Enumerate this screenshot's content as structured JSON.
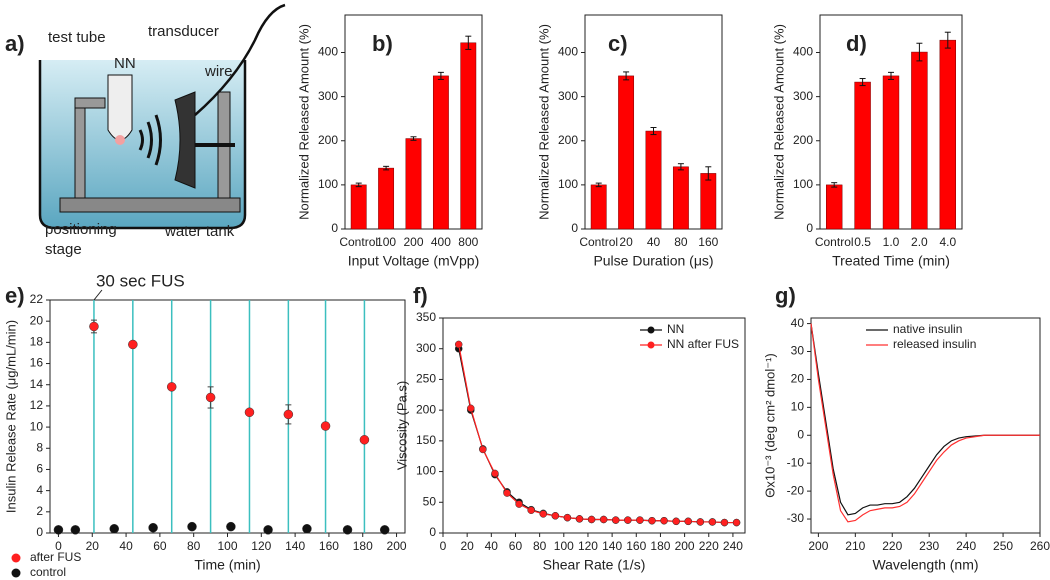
{
  "diagram": {
    "panel": "a)",
    "labels": [
      "test tube",
      "transducer",
      "NN",
      "wire",
      "positioning",
      "stage",
      "water tank"
    ]
  },
  "chart_data": [
    {
      "type": "bar",
      "panel": "b)",
      "xlabel": "Input Voltage (mVpp)",
      "ylabel": "Normalized Released Amount (%)",
      "categories": [
        "Control",
        "100",
        "200",
        "400",
        "800"
      ],
      "values": [
        100,
        138,
        205,
        347,
        422
      ],
      "errors": [
        4,
        4,
        4,
        8,
        15
      ],
      "color": "#ff0000",
      "ylim": [
        0,
        485
      ],
      "yticks": [
        0,
        100,
        200,
        300,
        400
      ]
    },
    {
      "type": "bar",
      "panel": "c)",
      "xlabel": "Pulse Duration (μs)",
      "ylabel": "Normalized Released Amount (%)",
      "categories": [
        "Control",
        "20",
        "40",
        "80",
        "160"
      ],
      "values": [
        100,
        347,
        222,
        141,
        126
      ],
      "errors": [
        4,
        9,
        8,
        7,
        15
      ],
      "color": "#ff0000",
      "ylim": [
        0,
        485
      ],
      "yticks": [
        0,
        100,
        200,
        300,
        400
      ]
    },
    {
      "type": "bar",
      "panel": "d)",
      "xlabel": "Treated Time (min)",
      "ylabel": "Normalized Released Amount (%)",
      "categories": [
        "Control",
        "0.5",
        "1.0",
        "2.0",
        "4.0"
      ],
      "values": [
        100,
        333,
        347,
        401,
        428
      ],
      "errors": [
        5,
        8,
        8,
        20,
        18
      ],
      "color": "#ff0000",
      "ylim": [
        0,
        485
      ],
      "yticks": [
        0,
        100,
        200,
        300,
        400
      ]
    },
    {
      "type": "scatter",
      "panel": "e)",
      "annotation": "30 sec FUS",
      "xlabel": "Time (min)",
      "ylabel": "Insulin Release Rate (μg/mL/min)",
      "xlim": [
        -5,
        205
      ],
      "xticks": [
        0,
        20,
        40,
        60,
        80,
        100,
        120,
        140,
        160,
        180,
        200
      ],
      "ylim": [
        0,
        22
      ],
      "yticks": [
        0,
        2,
        4,
        6,
        8,
        10,
        12,
        14,
        16,
        18,
        20,
        22
      ],
      "vlines": [
        21,
        44,
        67,
        90,
        113,
        136,
        158,
        181
      ],
      "vline_color": "#3bbfbf",
      "series": [
        {
          "name": "after FUS",
          "color": "#ff2020",
          "x": [
            21,
            44,
            67,
            90,
            113,
            136,
            158,
            181
          ],
          "values": [
            19.5,
            17.8,
            13.8,
            12.8,
            11.4,
            11.2,
            10.1,
            8.8
          ],
          "errors": [
            0.6,
            0.2,
            0.2,
            1.0,
            0.2,
            0.9,
            0.3,
            0.2
          ]
        },
        {
          "name": "control",
          "color": "#111111",
          "x": [
            0,
            10,
            33,
            56,
            79,
            102,
            124,
            147,
            171,
            193
          ],
          "values": [
            0.3,
            0.3,
            0.4,
            0.5,
            0.6,
            0.6,
            0.3,
            0.4,
            0.3,
            0.3
          ]
        }
      ]
    },
    {
      "type": "line",
      "panel": "f)",
      "markers": true,
      "xlabel": "Shear Rate (1/s)",
      "ylabel": "Viscosity (Pa.s)",
      "xlim": [
        0,
        250
      ],
      "xticks": [
        0,
        20,
        40,
        60,
        80,
        100,
        120,
        140,
        160,
        180,
        200,
        220,
        240
      ],
      "ylim": [
        0,
        350
      ],
      "yticks": [
        0,
        50,
        100,
        150,
        200,
        250,
        300,
        350
      ],
      "x": [
        13,
        23,
        33,
        43,
        53,
        63,
        73,
        83,
        93,
        103,
        113,
        123,
        133,
        143,
        153,
        163,
        173,
        183,
        193,
        203,
        213,
        223,
        233,
        243
      ],
      "series": [
        {
          "name": "NN",
          "color": "#111111",
          "values": [
            300,
            200,
            137,
            95,
            67,
            50,
            38,
            32,
            28,
            25,
            23,
            22,
            22,
            21,
            21,
            21,
            20,
            20,
            19,
            19,
            18,
            18,
            17,
            17
          ]
        },
        {
          "name": "NN after FUS",
          "color": "#ff2020",
          "values": [
            307,
            203,
            136,
            97,
            65,
            47,
            37,
            31,
            28,
            25,
            23,
            22,
            22,
            21,
            21,
            21,
            20,
            20,
            19,
            19,
            18,
            18,
            17,
            17
          ]
        }
      ]
    },
    {
      "type": "line",
      "panel": "g)",
      "markers": false,
      "xlabel": "Wavelength (nm)",
      "ylabel": "Θx10⁻³ (deg cm² dmol⁻¹)",
      "xlim": [
        198,
        260
      ],
      "xticks": [
        200,
        210,
        220,
        230,
        240,
        250,
        260
      ],
      "ylim": [
        -35,
        42
      ],
      "yticks": [
        -30,
        -20,
        -10,
        0,
        10,
        20,
        30,
        40
      ],
      "x": [
        198,
        200,
        202,
        204,
        206,
        208,
        210,
        212,
        214,
        216,
        218,
        220,
        222,
        224,
        226,
        228,
        230,
        232,
        234,
        236,
        238,
        240,
        245,
        250,
        255,
        260
      ],
      "series": [
        {
          "name": "native insulin",
          "color": "#111111",
          "values": [
            40,
            22,
            5,
            -12,
            -24,
            -28.5,
            -28,
            -26,
            -25,
            -25,
            -24.5,
            -24.5,
            -24,
            -22,
            -19,
            -15,
            -11,
            -7,
            -4,
            -2,
            -1,
            -0.5,
            0,
            0,
            0,
            0
          ]
        },
        {
          "name": "released insulin",
          "color": "#ff3030",
          "values": [
            40,
            20,
            3,
            -14,
            -27,
            -31,
            -30.5,
            -28.5,
            -27,
            -26.5,
            -26,
            -26,
            -25.5,
            -24,
            -21,
            -17,
            -13,
            -9,
            -6,
            -3.5,
            -2,
            -1,
            0,
            0,
            0,
            0
          ]
        }
      ]
    }
  ]
}
